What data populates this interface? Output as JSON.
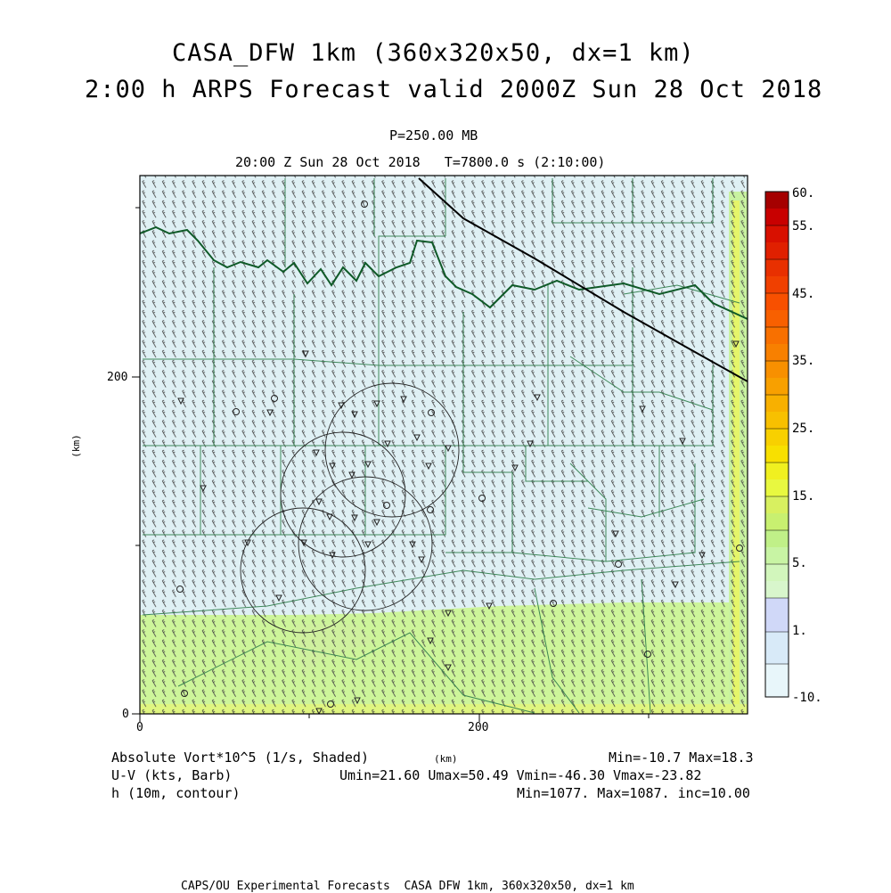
{
  "title": {
    "line1": "CASA_DFW 1km (360x320x50, dx=1 km)",
    "line2": "2:00 h ARPS Forecast valid 2000Z Sun 28 Oct 2018"
  },
  "level": "P=250.00 MB",
  "time_line": "20:00 Z Sun 28 Oct 2018   T=7800.0 s (2:10:00)",
  "axes": {
    "x_ticks": [
      "0",
      "200"
    ],
    "y_ticks": [
      "0",
      "200"
    ],
    "x_unit": "(km)",
    "y_unit": "(km)"
  },
  "colorbar": {
    "labels": [
      "60.",
      "55.",
      "45.",
      "35.",
      "25.",
      "15.",
      "5.",
      "1.",
      "-10."
    ],
    "colors": [
      "#a50000",
      "#c80000",
      "#e02000",
      "#f04000",
      "#f06000",
      "#f88000",
      "#f8a000",
      "#f8c000",
      "#f8e000",
      "#e8f830",
      "#d0f050",
      "#b8f070",
      "#c8f8b0",
      "#d0d8f8",
      "#d8eaf8",
      "#e0f0f8",
      "#e8f6fa"
    ]
  },
  "legend": {
    "vort": "Absolute Vort*10^5 (1/s, Shaded)",
    "vort_range": "Min=-10.7 Max=18.3",
    "wind": "U-V (kts, Barb)",
    "wind_range": "Umin=21.60 Umax=50.49 Vmin=-46.30 Vmax=-23.82",
    "height": "h (10m, contour)",
    "height_range": "Min=1077. Max=1087. inc=10.00"
  },
  "footer": "CAPS/OU Experimental Forecasts  CASA DFW 1km, 360x320x50, dx=1 km",
  "colors": {
    "background_field": "#dff0f4",
    "counties": "#2e7d4a",
    "river": "#0f5a28",
    "border": "#000000"
  }
}
